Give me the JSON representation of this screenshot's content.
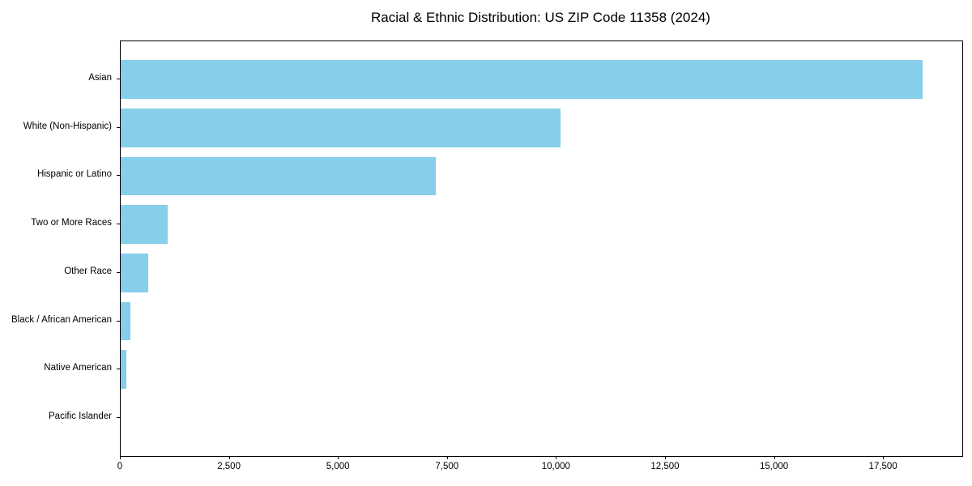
{
  "accent_color": "#87CEEB",
  "axis_color": "#000000",
  "chart_data": {
    "type": "bar",
    "orientation": "horizontal",
    "title": "Racial & Ethnic Distribution: US ZIP Code 11358 (2024)",
    "categories": [
      "Asian",
      "White (Non-Hispanic)",
      "Hispanic or Latino",
      "Two or More Races",
      "Other Race",
      "Black / African American",
      "Native American",
      "Pacific Islander"
    ],
    "values": [
      18380,
      10080,
      7220,
      1080,
      630,
      230,
      130,
      0
    ],
    "bar_color": "#87CEEB",
    "xlabel": "",
    "ylabel": "",
    "xlim": [
      0,
      19299
    ],
    "xticks": {
      "values": [
        0,
        2500,
        5000,
        7500,
        10000,
        12500,
        15000,
        17500
      ],
      "labels": [
        "0",
        "2,500",
        "5,000",
        "7,500",
        "10,000",
        "12,500",
        "15,000",
        "17,500"
      ]
    },
    "grid": false,
    "legend": "none"
  }
}
